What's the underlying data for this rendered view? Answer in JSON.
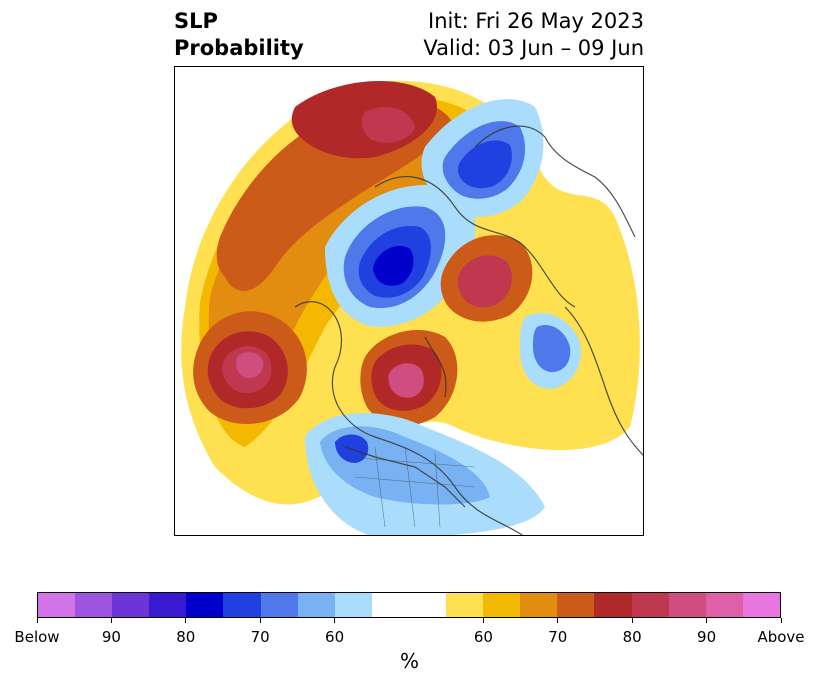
{
  "header": {
    "title_line1": "SLP",
    "title_line2": "Probability",
    "init": "Init: Fri 26 May 2023",
    "valid": "Valid: 03 Jun – 09 Jun"
  },
  "colorbar": {
    "label": "%",
    "below_colors": [
      "#d373e8",
      "#9e54e0",
      "#6b35d8",
      "#3a1ad0",
      "#0000cc",
      "#2040e0",
      "#4f78ea",
      "#78b2f2",
      "#aadcfb"
    ],
    "above_colors": [
      "#fee050",
      "#f5b800",
      "#e28c10",
      "#cc5a18",
      "#b02828",
      "#c03850",
      "#d04d80",
      "#dd60a8",
      "#e875e0"
    ],
    "ticks": [
      "Below",
      "90",
      "80",
      "70",
      "60",
      "60",
      "70",
      "80",
      "90",
      "Above"
    ]
  }
}
